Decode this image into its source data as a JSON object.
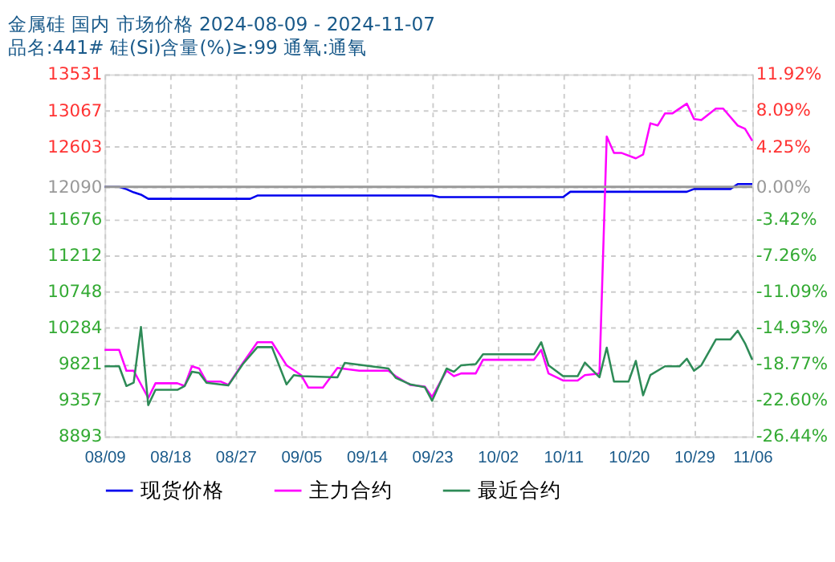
{
  "chart_data": {
    "type": "line",
    "title": "金属硅 国内 市场价格 2024-08-09 - 2024-11-07",
    "subtitle": "品名:441# 硅(Si)含量(%)≥:99 通氧:通氧",
    "xlim": [
      "2024-08-09",
      "2024-11-06"
    ],
    "xticks": [
      {
        "value": "2024-08-09",
        "label": "08/09"
      },
      {
        "value": "2024-08-18",
        "label": "08/18"
      },
      {
        "value": "2024-08-27",
        "label": "08/27"
      },
      {
        "value": "2024-09-05",
        "label": "09/05"
      },
      {
        "value": "2024-09-14",
        "label": "09/14"
      },
      {
        "value": "2024-09-23",
        "label": "09/23"
      },
      {
        "value": "2024-10-02",
        "label": "10/02"
      },
      {
        "value": "2024-10-11",
        "label": "10/11"
      },
      {
        "value": "2024-10-20",
        "label": "10/20"
      },
      {
        "value": "2024-10-29",
        "label": "10/29"
      },
      {
        "value": "2024-11-06",
        "label": "11/06"
      }
    ],
    "ylim": [
      8893,
      13531
    ],
    "yticks": [
      8893,
      9357,
      9821,
      10284,
      10748,
      11212,
      11676,
      12090,
      12603,
      13067,
      13531
    ],
    "y2lim": [
      -26.44,
      11.92
    ],
    "y2ticks": [
      {
        "value": -26.44,
        "label": "-26.44%"
      },
      {
        "value": -22.6,
        "label": "-22.60%"
      },
      {
        "value": -18.77,
        "label": "-18.77%"
      },
      {
        "value": -14.93,
        "label": "-14.93%"
      },
      {
        "value": -11.09,
        "label": "-11.09%"
      },
      {
        "value": -7.26,
        "label": "-7.26%"
      },
      {
        "value": -3.42,
        "label": "-3.42%"
      },
      {
        "value": 0,
        "label": "0.00%"
      },
      {
        "value": 4.25,
        "label": "4.25%"
      },
      {
        "value": 8.09,
        "label": "8.09%"
      },
      {
        "value": 11.92,
        "label": "11.92%"
      }
    ],
    "ref_lines": [
      {
        "axis": "y",
        "value": 12090,
        "color": "#999999"
      }
    ],
    "grid": true,
    "legend": "bottom",
    "marker": "none",
    "line_style": "solid",
    "series": [
      {
        "name": "现货价格",
        "color": "#0000ee",
        "x": [
          "2024-08-09",
          "2024-08-11",
          "2024-08-12",
          "2024-08-13",
          "2024-08-14",
          "2024-08-15",
          "2024-08-29",
          "2024-08-30",
          "2024-09-23",
          "2024-09-24",
          "2024-10-11",
          "2024-10-12",
          "2024-10-28",
          "2024-10-29",
          "2024-11-03",
          "2024-11-04",
          "2024-11-06"
        ],
        "values": [
          12090,
          12090,
          12060,
          12020,
          11990,
          11937,
          11937,
          11979,
          11979,
          11958,
          11958,
          12027,
          12027,
          12063,
          12063,
          12126,
          12126
        ]
      },
      {
        "name": "主力合约",
        "color": "#ff00ff",
        "x": [
          "2024-08-09",
          "2024-08-11",
          "2024-08-12",
          "2024-08-13",
          "2024-08-15",
          "2024-08-16",
          "2024-08-19",
          "2024-08-20",
          "2024-08-21",
          "2024-08-22",
          "2024-08-23",
          "2024-08-25",
          "2024-08-26",
          "2024-08-28",
          "2024-08-30",
          "2024-09-01",
          "2024-09-03",
          "2024-09-05",
          "2024-09-06",
          "2024-09-08",
          "2024-09-10",
          "2024-09-13",
          "2024-09-17",
          "2024-09-18",
          "2024-09-20",
          "2024-09-22",
          "2024-09-23",
          "2024-09-25",
          "2024-09-26",
          "2024-09-27",
          "2024-09-29",
          "2024-09-30",
          "2024-10-07",
          "2024-10-08",
          "2024-10-09",
          "2024-10-11",
          "2024-10-13",
          "2024-10-14",
          "2024-10-16",
          "2024-10-17",
          "2024-10-18",
          "2024-10-19",
          "2024-10-21",
          "2024-10-22",
          "2024-10-23",
          "2024-10-24",
          "2024-10-25",
          "2024-10-26",
          "2024-10-28",
          "2024-10-29",
          "2024-10-30",
          "2024-11-01",
          "2024-11-02",
          "2024-11-04",
          "2024-11-05",
          "2024-11-06"
        ],
        "values": [
          10002,
          10002,
          9735,
          9735,
          9385,
          9574,
          9574,
          9539,
          9791,
          9763,
          9595,
          9595,
          9553,
          9834,
          10100,
          10100,
          9805,
          9679,
          9518,
          9518,
          9770,
          9735,
          9735,
          9665,
          9553,
          9531,
          9399,
          9735,
          9665,
          9700,
          9700,
          9875,
          9875,
          10002,
          9700,
          9609,
          9609,
          9679,
          9700,
          12735,
          12525,
          12525,
          12455,
          12504,
          12904,
          12876,
          13030,
          13030,
          13156,
          12960,
          12946,
          13093,
          13093,
          12876,
          12834,
          12679
        ]
      },
      {
        "name": "最近合约",
        "color": "#2e8b57",
        "x": [
          "2024-08-09",
          "2024-08-11",
          "2024-08-12",
          "2024-08-13",
          "2024-08-14",
          "2024-08-15",
          "2024-08-16",
          "2024-08-19",
          "2024-08-20",
          "2024-08-21",
          "2024-08-22",
          "2024-08-23",
          "2024-08-26",
          "2024-08-28",
          "2024-08-30",
          "2024-09-01",
          "2024-09-03",
          "2024-09-04",
          "2024-09-05",
          "2024-09-10",
          "2024-09-11",
          "2024-09-17",
          "2024-09-18",
          "2024-09-20",
          "2024-09-22",
          "2024-09-23",
          "2024-09-25",
          "2024-09-26",
          "2024-09-27",
          "2024-09-29",
          "2024-09-30",
          "2024-10-07",
          "2024-10-08",
          "2024-10-09",
          "2024-10-11",
          "2024-10-13",
          "2024-10-14",
          "2024-10-16",
          "2024-10-17",
          "2024-10-18",
          "2024-10-20",
          "2024-10-21",
          "2024-10-22",
          "2024-10-23",
          "2024-10-25",
          "2024-10-27",
          "2024-10-28",
          "2024-10-29",
          "2024-10-30",
          "2024-11-01",
          "2024-11-03",
          "2024-11-04",
          "2024-11-05",
          "2024-11-06"
        ],
        "values": [
          9791,
          9791,
          9539,
          9581,
          10296,
          9294,
          9490,
          9490,
          9539,
          9721,
          9707,
          9581,
          9546,
          9820,
          10037,
          10037,
          9560,
          9679,
          9665,
          9651,
          9834,
          9763,
          9644,
          9560,
          9525,
          9350,
          9763,
          9721,
          9805,
          9819,
          9945,
          9945,
          10100,
          9805,
          9665,
          9665,
          9840,
          9651,
          10030,
          9595,
          9595,
          9861,
          9420,
          9679,
          9791,
          9791,
          9889,
          9735,
          9805,
          10135,
          10135,
          10247,
          10086,
          9875
        ]
      }
    ]
  }
}
